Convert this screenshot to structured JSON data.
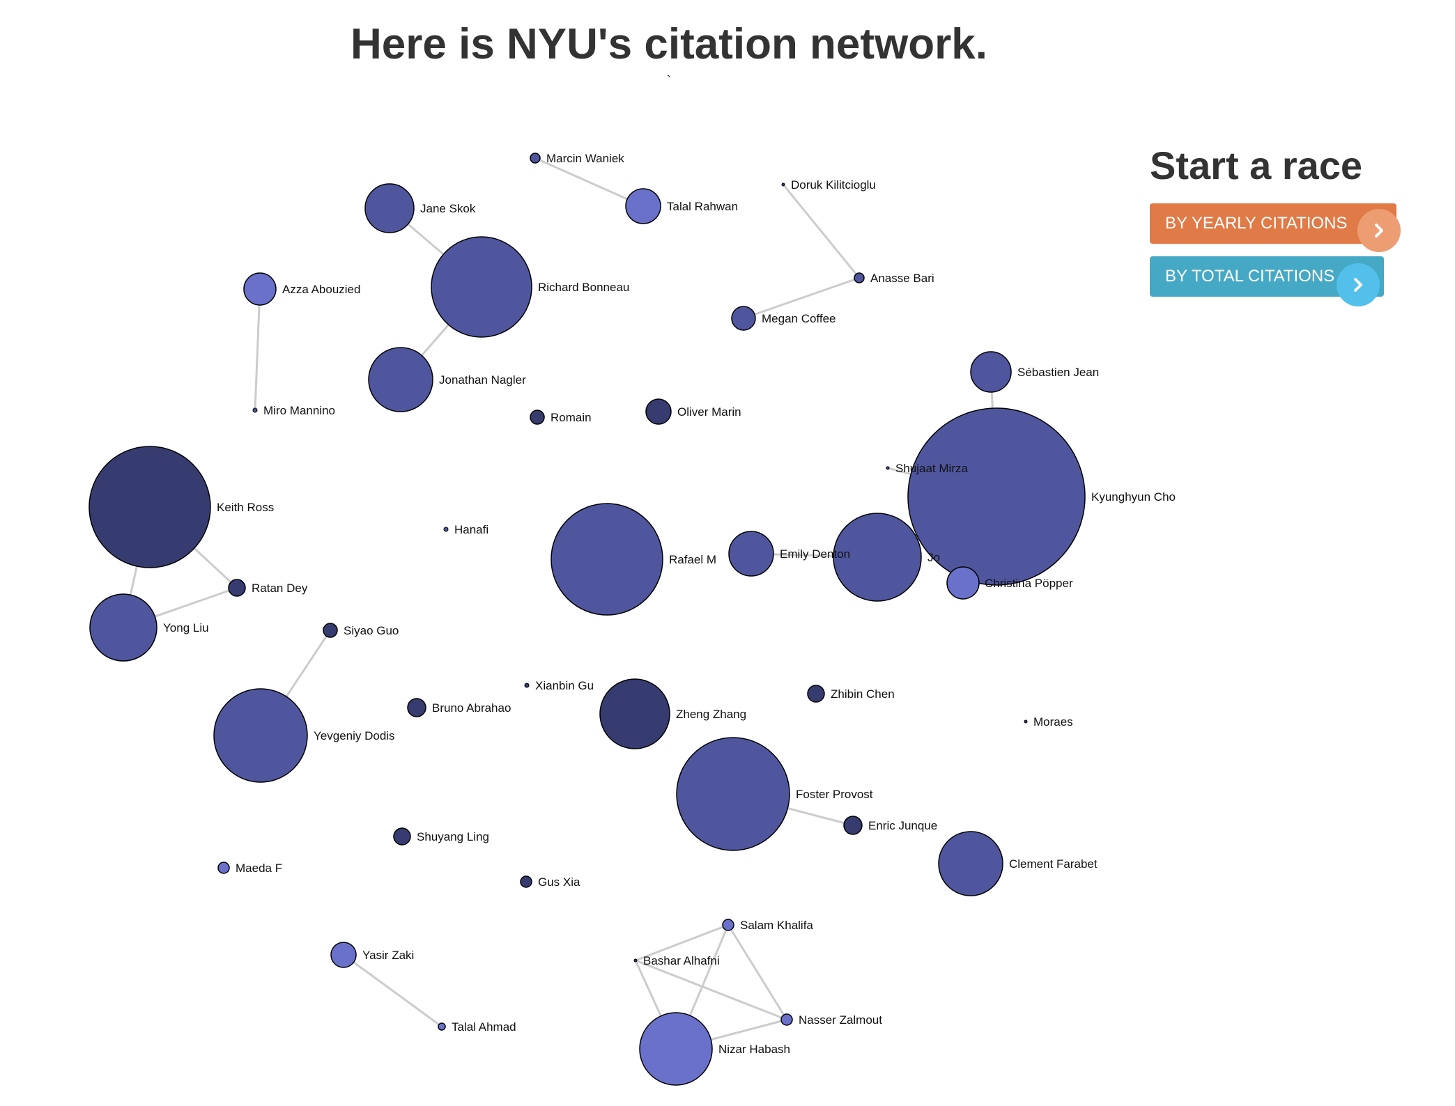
{
  "header": {
    "title": "Here is NYU's citation network.",
    "subtitle": "`"
  },
  "race": {
    "heading": "Start a race",
    "yearly_label": "BY YEARLY CITATIONS",
    "total_label": "BY TOTAL CITATIONS",
    "chevron_icon": "chevron-right-icon"
  },
  "colors": {
    "dark": "#363c70",
    "medium": "#4f569e",
    "light": "#6a71cb",
    "edge": "#cccccc"
  },
  "nodes": [
    {
      "id": "marcin",
      "label": "Marcin Waniek",
      "shade": "medium"
    },
    {
      "id": "talal_r",
      "label": "Talal Rahwan",
      "shade": "light"
    },
    {
      "id": "jane",
      "label": "Jane Skok",
      "shade": "medium"
    },
    {
      "id": "richard",
      "label": "Richard Bonneau",
      "shade": "medium"
    },
    {
      "id": "doruk",
      "label": "Doruk Kilitcioglu",
      "shade": "dark"
    },
    {
      "id": "anasse",
      "label": "Anasse Bari",
      "shade": "medium"
    },
    {
      "id": "megan",
      "label": "Megan Coffee",
      "shade": "medium"
    },
    {
      "id": "azza",
      "label": "Azza Abouzied",
      "shade": "light"
    },
    {
      "id": "miro",
      "label": "Miro Mannino",
      "shade": "medium"
    },
    {
      "id": "jonathan",
      "label": "Jonathan Nagler",
      "shade": "medium"
    },
    {
      "id": "romain",
      "label": "Romain",
      "shade": "dark"
    },
    {
      "id": "oliver",
      "label": "Oliver Marin",
      "shade": "dark"
    },
    {
      "id": "sebastien",
      "label": "Sébastien Jean",
      "shade": "medium"
    },
    {
      "id": "kyunghyun",
      "label": "Kyunghyun Cho",
      "shade": "medium"
    },
    {
      "id": "shujaat",
      "label": "Shujaat Mirza",
      "shade": "dark"
    },
    {
      "id": "keith",
      "label": "Keith Ross",
      "shade": "dark"
    },
    {
      "id": "hanafi",
      "label": "Hanafi",
      "shade": "medium"
    },
    {
      "id": "rafael",
      "label": "Rafael M",
      "shade": "medium"
    },
    {
      "id": "emily",
      "label": "Emily Denton",
      "shade": "medium"
    },
    {
      "id": "jo",
      "label": "Jo",
      "shade": "medium"
    },
    {
      "id": "christina",
      "label": "Christina Pöpper",
      "shade": "light"
    },
    {
      "id": "ratan",
      "label": "Ratan Dey",
      "shade": "dark"
    },
    {
      "id": "yong",
      "label": "Yong Liu",
      "shade": "medium"
    },
    {
      "id": "siyao",
      "label": "Siyao Guo",
      "shade": "dark"
    },
    {
      "id": "xianbin",
      "label": "Xianbin Gu",
      "shade": "dark"
    },
    {
      "id": "zheng",
      "label": "Zheng Zhang",
      "shade": "dark"
    },
    {
      "id": "zhibin",
      "label": "Zhibin Chen",
      "shade": "dark"
    },
    {
      "id": "bruno",
      "label": "Bruno Abrahao",
      "shade": "dark"
    },
    {
      "id": "yevgeniy",
      "label": "Yevgeniy Dodis",
      "shade": "medium"
    },
    {
      "id": "moraes",
      "label": "Moraes",
      "shade": "dark"
    },
    {
      "id": "foster",
      "label": "Foster Provost",
      "shade": "medium"
    },
    {
      "id": "enric",
      "label": "Enric Junque",
      "shade": "dark"
    },
    {
      "id": "shuyang",
      "label": "Shuyang Ling",
      "shade": "dark"
    },
    {
      "id": "clement",
      "label": "Clement Farabet",
      "shade": "medium"
    },
    {
      "id": "maeda",
      "label": "Maeda F",
      "shade": "light"
    },
    {
      "id": "gus",
      "label": "Gus Xia",
      "shade": "dark"
    },
    {
      "id": "salam",
      "label": "Salam Khalifa",
      "shade": "light"
    },
    {
      "id": "bashar",
      "label": "Bashar Alhafni",
      "shade": "dark"
    },
    {
      "id": "yasir",
      "label": "Yasir Zaki",
      "shade": "light"
    },
    {
      "id": "nasser",
      "label": "Nasser Zalmout",
      "shade": "light"
    },
    {
      "id": "talal_a",
      "label": "Talal Ahmad",
      "shade": "light"
    },
    {
      "id": "nizar",
      "label": "Nizar Habash",
      "shade": "light"
    }
  ],
  "edges": [
    [
      "marcin",
      "talal_r"
    ],
    [
      "jane",
      "richard"
    ],
    [
      "richard",
      "jonathan"
    ],
    [
      "doruk",
      "anasse"
    ],
    [
      "anasse",
      "megan"
    ],
    [
      "azza",
      "miro"
    ],
    [
      "sebastien",
      "kyunghyun"
    ],
    [
      "shujaat",
      "kyunghyun"
    ],
    [
      "keith",
      "ratan"
    ],
    [
      "keith",
      "yong"
    ],
    [
      "yong",
      "ratan"
    ],
    [
      "siyao",
      "yevgeniy"
    ],
    [
      "foster",
      "enric"
    ],
    [
      "emily",
      "jo"
    ],
    [
      "salam",
      "bashar"
    ],
    [
      "salam",
      "nizar"
    ],
    [
      "salam",
      "nasser"
    ],
    [
      "bashar",
      "nasser"
    ],
    [
      "bashar",
      "nizar"
    ],
    [
      "nizar",
      "nasser"
    ],
    [
      "yasir",
      "talal_a"
    ]
  ]
}
